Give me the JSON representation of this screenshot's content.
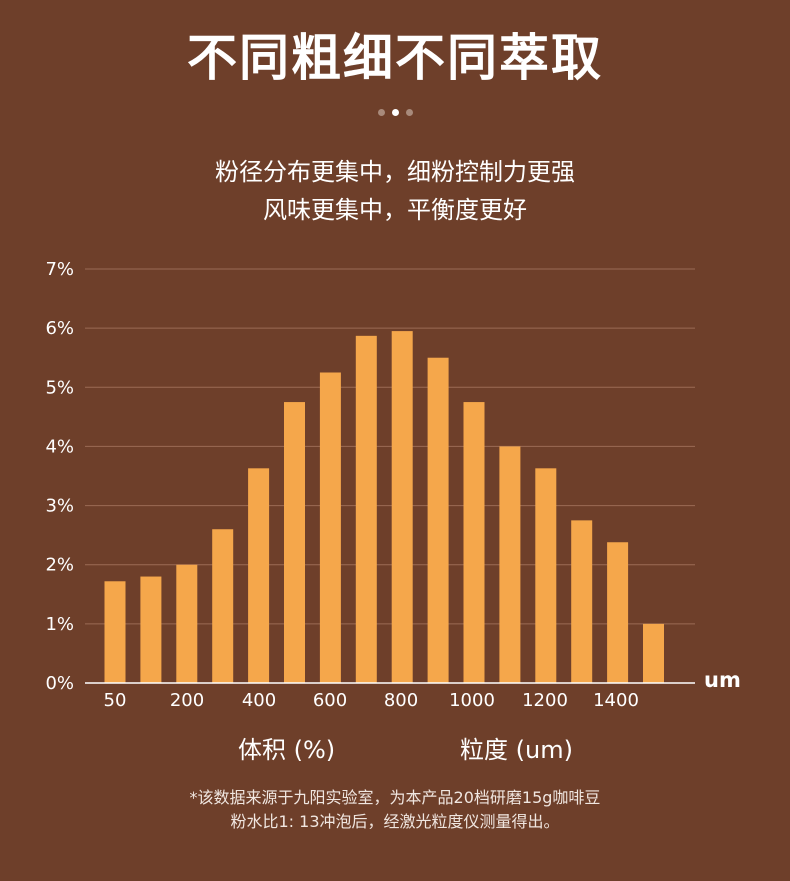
{
  "title": "不同粗细不同萃取",
  "subtitle_line1": "粉径分布更集中，细粉控制力更强",
  "subtitle_line2": "风味更集中，平衡度更好",
  "footnote_line1": "*该数据来源于九阳实验室，为本产品20档研磨15g咖啡豆",
  "footnote_line2": "粉水比1: 13冲泡后，经激光粒度仪测量得出。",
  "colors": {
    "background": "#6e3f2a",
    "bar": "#f5a74b",
    "gridline": "#9b6b55",
    "text": "#ffffff"
  },
  "chart_data": {
    "type": "bar",
    "xlabel": "粒度 (um)",
    "ylabel": "体积 (%)",
    "x_unit": "um",
    "ylim": [
      0,
      7
    ],
    "y_ticks": [
      "0%",
      "1%",
      "2%",
      "3%",
      "4%",
      "5%",
      "6%",
      "7%"
    ],
    "x_tick_labels": [
      "50",
      "200",
      "400",
      "600",
      "800",
      "1000",
      "1200",
      "1400"
    ],
    "grid": true,
    "values": [
      1.72,
      1.8,
      2.0,
      2.6,
      3.63,
      4.75,
      5.25,
      5.87,
      5.95,
      5.5,
      4.75,
      4.0,
      3.63,
      2.75,
      2.38,
      1.0
    ]
  }
}
